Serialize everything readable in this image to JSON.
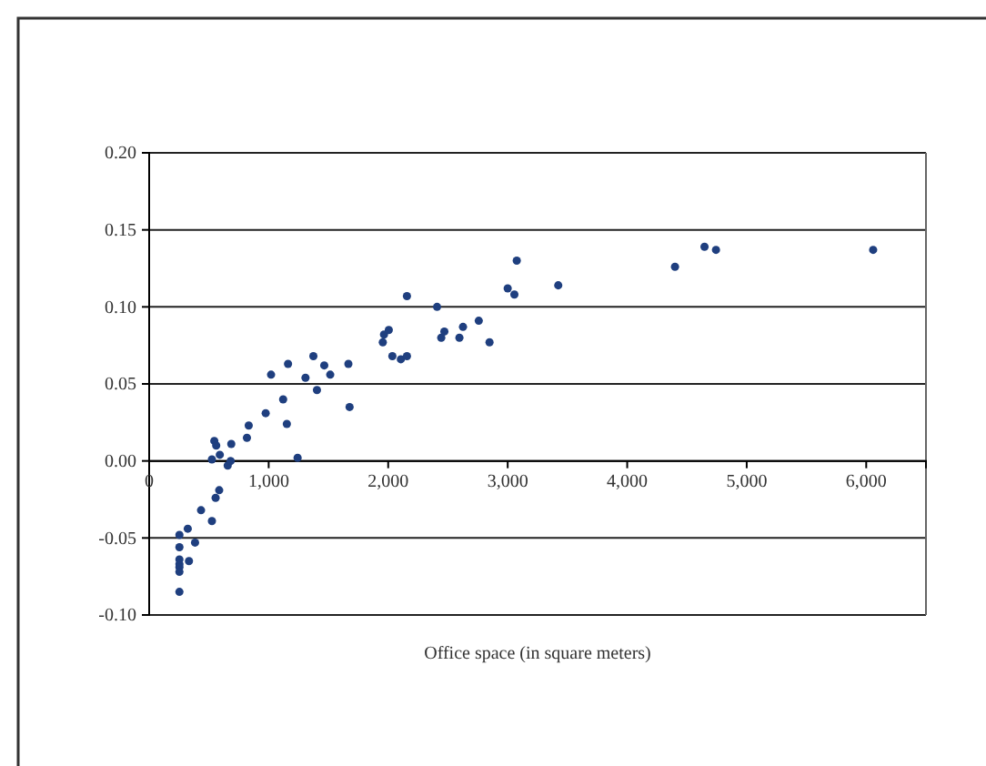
{
  "chart_data": {
    "type": "scatter",
    "xlabel": "Office space (in square meters)",
    "xlim": [
      0,
      6500
    ],
    "xticks": [
      {
        "value": 0,
        "label": "0"
      },
      {
        "value": 1000,
        "label": "1,000"
      },
      {
        "value": 2000,
        "label": "2,000"
      },
      {
        "value": 3000,
        "label": "3,000"
      },
      {
        "value": 4000,
        "label": "4,000"
      },
      {
        "value": 5000,
        "label": "5,000"
      },
      {
        "value": 6000,
        "label": "6,000"
      }
    ],
    "ylim": [
      -0.1,
      0.2
    ],
    "yticks": [
      {
        "value": -0.1,
        "label": "-0.10"
      },
      {
        "value": -0.05,
        "label": "-0.05"
      },
      {
        "value": 0,
        "label": "0.00"
      },
      {
        "value": 0.05,
        "label": "0.05"
      },
      {
        "value": 0.1,
        "label": "0.10"
      },
      {
        "value": 0.15,
        "label": "0.15"
      },
      {
        "value": 0.2,
        "label": "0.20"
      }
    ],
    "grid": "y",
    "marker": "circle",
    "series": [
      {
        "color": "#1f3f7f",
        "x": [
          525,
          545,
          561,
          591,
          657,
          682,
          687,
          818,
          833,
          975,
          1020,
          1121,
          1152,
          1162,
          1242,
          1308,
          1374,
          1404,
          1465,
          1515,
          1667,
          1677,
          1955,
          1965,
          2005,
          2035,
          2106,
          2157,
          2157,
          2409,
          2444,
          2470,
          2596,
          2626,
          2758,
          2848,
          3000,
          3056,
          3076,
          3423,
          4400,
          4647,
          4743,
          6058,
          586,
          556,
          434,
          525,
          323,
          253,
          384,
          253,
          333,
          253,
          253,
          253,
          253,
          253
        ],
        "values": [
          0.001,
          0.013,
          0.01,
          0.004,
          -0.003,
          0,
          0.011,
          0.015,
          0.023,
          0.031,
          0.056,
          0.04,
          0.024,
          0.063,
          0.002,
          0.054,
          0.068,
          0.046,
          0.062,
          0.056,
          0.063,
          0.035,
          0.077,
          0.082,
          0.085,
          0.068,
          0.066,
          0.068,
          0.107,
          0.1,
          0.08,
          0.084,
          0.08,
          0.087,
          0.091,
          0.077,
          0.112,
          0.108,
          0.13,
          0.114,
          0.126,
          0.139,
          0.137,
          0.137,
          -0.019,
          -0.024,
          -0.032,
          -0.039,
          -0.044,
          -0.048,
          -0.053,
          -0.056,
          -0.065,
          -0.064,
          -0.067,
          -0.069,
          -0.072,
          -0.085
        ]
      }
    ]
  }
}
